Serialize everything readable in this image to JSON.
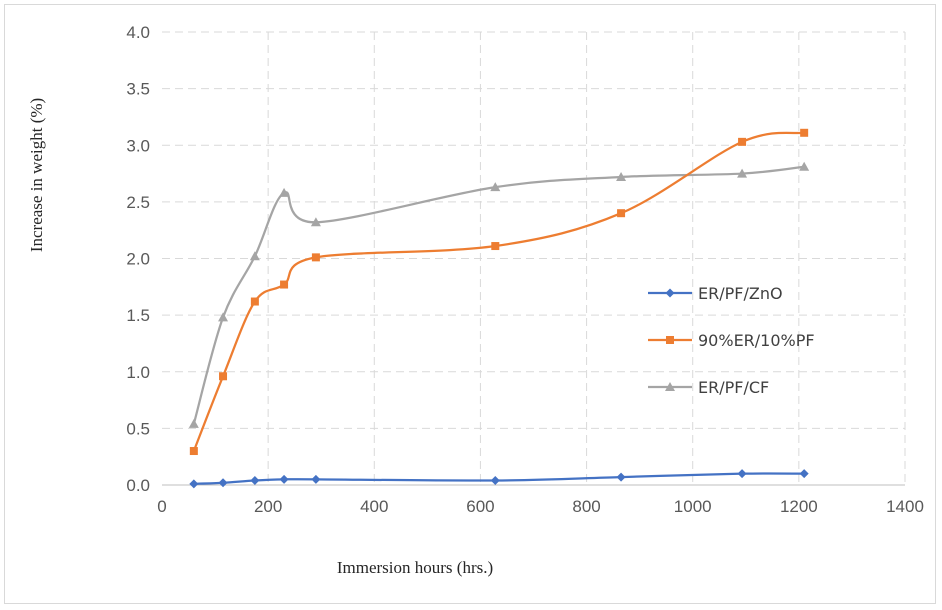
{
  "chart_data": {
    "type": "line",
    "xlabel": "Immersion hours (hrs.)",
    "ylabel": "Increase in weight  (%)",
    "xlim": [
      0,
      1400
    ],
    "ylim": [
      0,
      4.0
    ],
    "xticks": [
      "0",
      "200",
      "400",
      "600",
      "800",
      "1000",
      "1200",
      "1400"
    ],
    "yticks": [
      "0.0",
      "0.5",
      "1.0",
      "1.5",
      "2.0",
      "2.5",
      "3.0",
      "3.5",
      "4.0"
    ],
    "grid": "dashed",
    "legend_position": "right",
    "series": [
      {
        "name": "ER/PF/ZnO",
        "color": "#4472c4",
        "marker": "diamond",
        "x": [
          60,
          115,
          175,
          230,
          290,
          628,
          865,
          1093,
          1210
        ],
        "y": [
          0.01,
          0.02,
          0.04,
          0.05,
          0.05,
          0.04,
          0.07,
          0.1,
          0.1
        ]
      },
      {
        "name": "90%ER/10%PF",
        "color": "#ed7d31",
        "marker": "square",
        "x": [
          60,
          115,
          175,
          230,
          290,
          628,
          865,
          1093,
          1210
        ],
        "y": [
          0.3,
          0.96,
          1.62,
          1.77,
          2.01,
          2.11,
          2.4,
          3.03,
          3.11
        ]
      },
      {
        "name": "ER/PF/CF",
        "color": "#a5a5a5",
        "marker": "triangle",
        "x": [
          60,
          115,
          175,
          230,
          290,
          628,
          865,
          1093,
          1210
        ],
        "y": [
          0.54,
          1.48,
          2.02,
          2.58,
          2.32,
          2.63,
          2.72,
          2.75,
          2.81
        ]
      }
    ]
  }
}
